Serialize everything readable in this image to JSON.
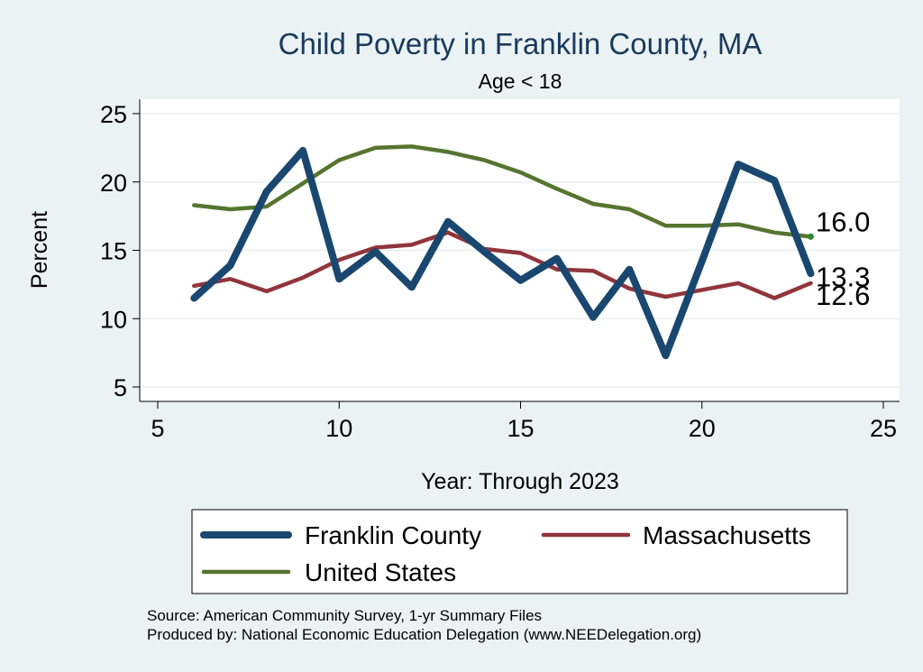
{
  "chart_data": {
    "type": "line",
    "title": "Child Poverty in Franklin County, MA",
    "subtitle": "Age < 18",
    "xlabel": "Year: Through 2023",
    "ylabel": "Percent",
    "xlim": [
      5,
      25
    ],
    "ylim": [
      5,
      25
    ],
    "x_ticks": [
      5,
      10,
      15,
      20,
      25
    ],
    "y_ticks": [
      5,
      10,
      15,
      20,
      25
    ],
    "grid": true,
    "legend_position": "bottom",
    "x": [
      6,
      7,
      8,
      9,
      10,
      11,
      12,
      13,
      14,
      15,
      16,
      17,
      18,
      19,
      20,
      21,
      22,
      23
    ],
    "series": [
      {
        "name": "Franklin County",
        "color": "#1a476f",
        "values": [
          11.5,
          13.9,
          19.3,
          22.3,
          12.9,
          14.9,
          12.3,
          17.1,
          14.9,
          12.8,
          14.4,
          10.1,
          13.6,
          7.3,
          14.2,
          21.3,
          20.1,
          13.3
        ],
        "end_label": "13.3"
      },
      {
        "name": "Massachusetts",
        "color": "#90353b",
        "values": [
          12.4,
          12.9,
          12.0,
          13.0,
          14.3,
          15.2,
          15.4,
          16.3,
          15.1,
          14.8,
          13.6,
          13.5,
          12.2,
          11.6,
          12.1,
          12.6,
          11.5,
          12.6
        ],
        "end_label": "12.6"
      },
      {
        "name": "United States",
        "color": "#55752f",
        "values": [
          18.3,
          18.0,
          18.2,
          19.9,
          21.6,
          22.5,
          22.6,
          22.2,
          21.6,
          20.7,
          19.5,
          18.4,
          18.0,
          16.8,
          16.8,
          16.9,
          16.3,
          16.0
        ],
        "end_label": "16.0"
      }
    ],
    "notes": [
      "Source: American Community Survey, 1-yr Summary Files",
      "Produced by: National Economic Education Delegation (www.NEEDelegation.org)"
    ]
  }
}
